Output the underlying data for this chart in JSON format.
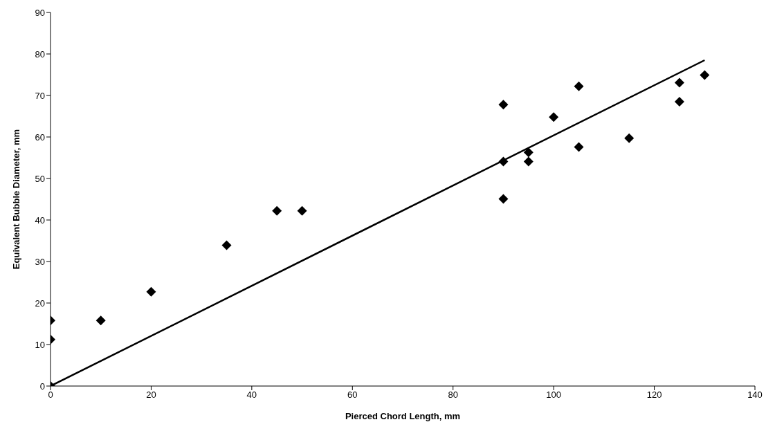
{
  "chart_data": {
    "type": "scatter",
    "xlabel": "Pierced Chord Length, mm",
    "ylabel": "Equivalent Bubble Diameter, mm",
    "xlim": [
      0,
      140
    ],
    "xticks": [
      0,
      20,
      40,
      60,
      80,
      100,
      120,
      140
    ],
    "ylim": [
      0,
      90
    ],
    "yticks": [
      0,
      10,
      20,
      30,
      40,
      50,
      60,
      70,
      80,
      90
    ],
    "grid": false,
    "marker": "diamond",
    "series": [
      {
        "color": "#000000",
        "x": [
          0,
          0,
          0,
          10,
          20,
          35,
          45,
          50,
          90,
          90,
          90,
          95,
          95,
          100,
          105,
          105,
          115,
          125,
          125,
          130
        ],
        "values": [
          0,
          11.2,
          15.8,
          15.8,
          22.7,
          33.9,
          42.2,
          42.2,
          67.8,
          54.1,
          45.1,
          56.3,
          54.1,
          64.8,
          72.2,
          57.6,
          59.7,
          73.1,
          68.5,
          74.9
        ]
      },
      {
        "type": "line",
        "color": "#000000",
        "marker": "none",
        "line_style": "solid",
        "x": [
          0,
          130
        ],
        "values": [
          0,
          78.5
        ]
      }
    ]
  }
}
